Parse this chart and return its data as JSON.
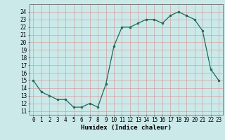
{
  "x": [
    0,
    1,
    2,
    3,
    4,
    5,
    6,
    7,
    8,
    9,
    10,
    11,
    12,
    13,
    14,
    15,
    16,
    17,
    18,
    19,
    20,
    21,
    22,
    23
  ],
  "y": [
    15,
    13.5,
    13,
    12.5,
    12.5,
    11.5,
    11.5,
    12,
    11.5,
    14.5,
    19.5,
    22,
    22,
    22.5,
    23,
    23,
    22.5,
    23.5,
    24,
    23.5,
    23,
    21.5,
    16.5,
    15
  ],
  "xlabel": "Humidex (Indice chaleur)",
  "xlim": [
    -0.5,
    23.5
  ],
  "ylim": [
    10.5,
    25
  ],
  "yticks": [
    11,
    12,
    13,
    14,
    15,
    16,
    17,
    18,
    19,
    20,
    21,
    22,
    23,
    24
  ],
  "xticks": [
    0,
    1,
    2,
    3,
    4,
    5,
    6,
    7,
    8,
    9,
    10,
    11,
    12,
    13,
    14,
    15,
    16,
    17,
    18,
    19,
    20,
    21,
    22,
    23
  ],
  "line_color": "#1a6b5a",
  "marker_color": "#1a6b5a",
  "bg_color": "#cce9e9",
  "grid_color": "#aad4d4",
  "tick_fontsize": 5.5,
  "label_fontsize": 6.5
}
